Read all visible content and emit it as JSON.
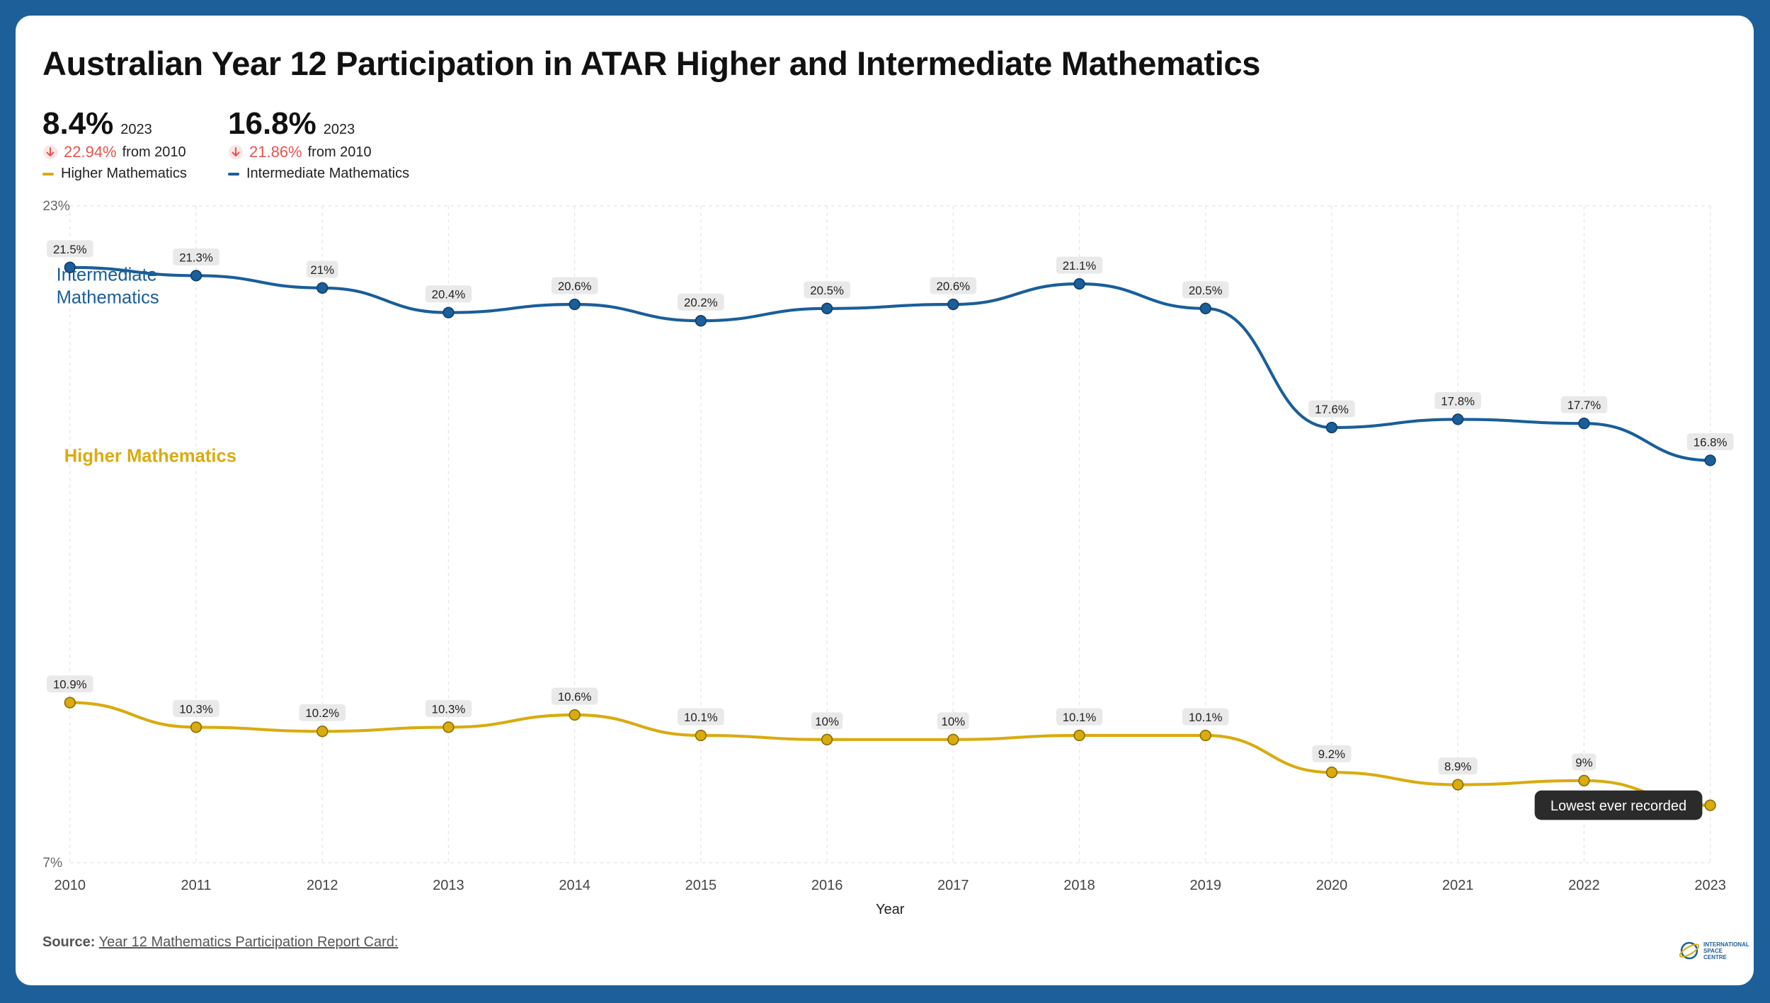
{
  "title": "Australian Year 12 Participation in ATAR Higher and Intermediate Mathematics",
  "stats": {
    "higher": {
      "value": "8.4%",
      "year": "2023",
      "change": "22.94%",
      "from": "from 2010",
      "name": "Higher Mathematics"
    },
    "intermediate": {
      "value": "16.8%",
      "year": "2023",
      "change": "21.86%",
      "from": "from 2010",
      "name": "Intermediate Mathematics"
    }
  },
  "source": {
    "label": "Source:",
    "link_text": "Year 12 Mathematics Participation Report Card:"
  },
  "logo": {
    "line1": "INTERNATIONAL",
    "line2": "SPACE CENTRE"
  },
  "colors": {
    "higher": "#d9ab0f",
    "intermediate": "#1a5e9a",
    "down": "#e2554f"
  },
  "chart_data": {
    "type": "line",
    "title": "Australian Year 12 Participation in ATAR Higher and Intermediate Mathematics",
    "xlabel": "Year",
    "ylabel": "",
    "ylim": [
      7,
      23
    ],
    "y_tick_labels": [
      "23%",
      "7%"
    ],
    "x": [
      "2010",
      "2011",
      "2012",
      "2013",
      "2014",
      "2015",
      "2016",
      "2017",
      "2018",
      "2019",
      "2020",
      "2021",
      "2022",
      "2023"
    ],
    "series": [
      {
        "name": "Intermediate Mathematics",
        "label": "Intermediate Mathematics",
        "color": "#1a5e9a",
        "values": [
          21.5,
          21.3,
          21,
          20.4,
          20.6,
          20.2,
          20.5,
          20.6,
          21.1,
          20.5,
          17.6,
          17.8,
          17.7,
          16.8
        ],
        "labels": [
          "21.5%",
          "21.3%",
          "21%",
          "20.4%",
          "20.6%",
          "20.2%",
          "20.5%",
          "20.6%",
          "21.1%",
          "20.5%",
          "17.6%",
          "17.8%",
          "17.7%",
          "16.8%"
        ]
      },
      {
        "name": "Higher Mathematics",
        "label": "Higher Mathematics",
        "color": "#d9ab0f",
        "values": [
          10.9,
          10.3,
          10.2,
          10.3,
          10.6,
          10.1,
          10,
          10,
          10.1,
          10.1,
          9.2,
          8.9,
          9,
          8.4
        ],
        "labels": [
          "10.9%",
          "10.3%",
          "10.2%",
          "10.3%",
          "10.6%",
          "10.1%",
          "10%",
          "10%",
          "10.1%",
          "10.1%",
          "9.2%",
          "8.9%",
          "9%",
          ""
        ]
      }
    ],
    "annotation": {
      "year": "2023",
      "text": "Lowest ever recorded"
    },
    "grid": true,
    "legend": "top-left"
  }
}
